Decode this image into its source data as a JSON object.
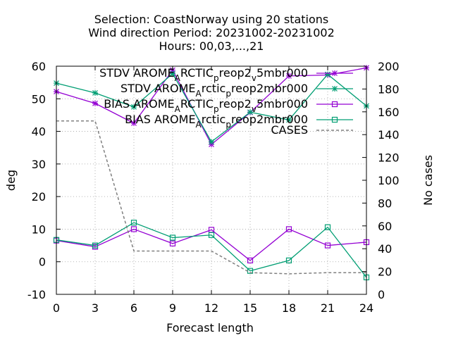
{
  "chart_data": {
    "type": "line",
    "title_lines": [
      "Selection: CoastNorway using    20 stations",
      "Wind direction   Period: 20231002-20231002",
      "Hours:  00,03,...,21"
    ],
    "xlabel": "Forecast length",
    "ylabel": "deg",
    "y2label": "No cases",
    "x": [
      0,
      3,
      6,
      9,
      12,
      15,
      18,
      21,
      24
    ],
    "xlim": [
      0,
      24
    ],
    "ylim": [
      -10,
      60
    ],
    "y2lim": [
      0,
      200
    ],
    "x_ticks": [
      0,
      3,
      6,
      9,
      12,
      15,
      18,
      21,
      24
    ],
    "y_ticks": [
      -10,
      0,
      10,
      20,
      30,
      40,
      50,
      60
    ],
    "y2_ticks": [
      0,
      20,
      40,
      60,
      80,
      100,
      120,
      140,
      160,
      180,
      200
    ],
    "grid": true,
    "legend_position": "top-right",
    "series": [
      {
        "name": "STDV AROME_ARCTIC_preop2_v5mbr000",
        "legend_base": "STDV AROME",
        "legend_parts": [
          [
            "A",
            "sub"
          ],
          [
            "RCTIC",
            "base"
          ],
          [
            "p",
            "sub"
          ],
          [
            "reop2",
            "base"
          ],
          [
            "v",
            "sub"
          ],
          [
            "5mbr000",
            "base"
          ]
        ],
        "axis": "y",
        "color": "#9400d3",
        "marker": "star",
        "values": [
          52.2,
          48.6,
          42.5,
          58.8,
          36.0,
          45.8,
          57.0,
          57.3,
          59.5
        ]
      },
      {
        "name": "STDV AROME_ARCTIC_preop2mbr000",
        "legend_base": "STDV AROME",
        "legend_parts": [
          [
            "A",
            "sub"
          ],
          [
            "rctic",
            "base"
          ],
          [
            "p",
            "sub"
          ],
          [
            "reop2mbr000",
            "base"
          ]
        ],
        "axis": "y",
        "color": "#009e73",
        "marker": "star",
        "values": [
          54.8,
          51.8,
          47.5,
          57.7,
          36.8,
          45.9,
          43.5,
          57.5,
          47.8
        ]
      },
      {
        "name": "BIAS AROME_ARCTIC_preop2_v5mbr000",
        "legend_base": "BIAS AROME",
        "legend_parts": [
          [
            "A",
            "sub"
          ],
          [
            "RCTIC",
            "base"
          ],
          [
            "p",
            "sub"
          ],
          [
            "reop2",
            "base"
          ],
          [
            "v",
            "sub"
          ],
          [
            "5mbr000",
            "base"
          ]
        ],
        "axis": "y",
        "color": "#9400d3",
        "marker": "square",
        "values": [
          6.5,
          4.6,
          10.0,
          5.6,
          9.8,
          0.4,
          10.0,
          5.0,
          6.0
        ]
      },
      {
        "name": "BIAS AROME_Arctic_preop2mbr000",
        "legend_base": "BIAS AROME",
        "legend_parts": [
          [
            "A",
            "sub"
          ],
          [
            "rctic",
            "base"
          ],
          [
            "p",
            "sub"
          ],
          [
            "reop2mbr000",
            "base"
          ]
        ],
        "axis": "y",
        "color": "#009e73",
        "marker": "square",
        "values": [
          6.7,
          5.0,
          12.0,
          7.4,
          8.2,
          -2.8,
          0.4,
          10.6,
          -4.8
        ]
      },
      {
        "name": "CASES",
        "legend_base": "CASES",
        "legend_parts": [],
        "axis": "y2",
        "color": "#808080",
        "marker": "none",
        "dashed": true,
        "values": [
          152,
          152,
          38,
          38,
          38,
          19,
          18,
          19,
          19
        ]
      }
    ]
  }
}
